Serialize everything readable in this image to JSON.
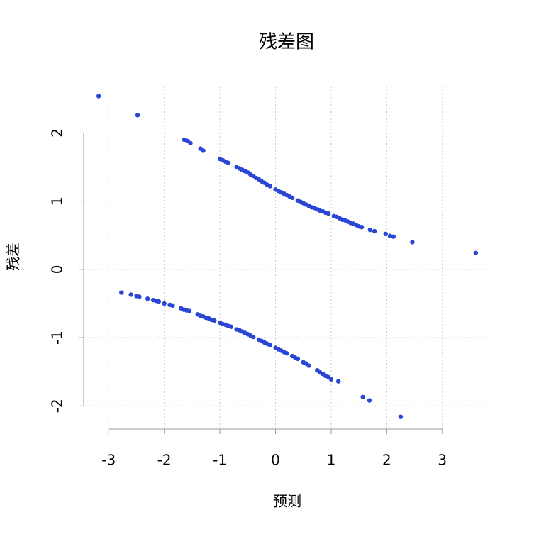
{
  "chart_data": {
    "type": "scatter",
    "title": "残差图",
    "x_label": "预测",
    "y_label": "残差",
    "color": "#2a46d6",
    "grid": true,
    "xlim": [
      -3.45,
      3.87
    ],
    "ylim": [
      -2.34,
      2.68
    ],
    "xticks": [
      -3,
      -2,
      -1,
      0,
      1,
      2,
      3
    ],
    "yticks": [
      -2,
      -1,
      0,
      1,
      2
    ],
    "x": [
      -3.18,
      -2.48,
      -1.64,
      -1.58,
      -1.53,
      -1.35,
      -1.3,
      -1.0,
      -0.95,
      -0.9,
      -0.85,
      -0.7,
      -0.65,
      -0.6,
      -0.55,
      -0.5,
      -0.45,
      -0.4,
      -0.35,
      -0.3,
      -0.25,
      -0.2,
      -0.15,
      -0.1,
      0,
      0.05,
      0.1,
      0.15,
      0.2,
      0.25,
      0.3,
      0.4,
      0.45,
      0.5,
      0.55,
      0.6,
      0.65,
      0.7,
      0.75,
      0.8,
      0.85,
      0.9,
      0.95,
      1.05,
      1.1,
      1.15,
      1.2,
      1.25,
      1.3,
      1.35,
      1.4,
      1.45,
      1.5,
      1.55,
      1.7,
      1.78,
      1.98,
      2.06,
      2.12,
      2.46,
      3.6,
      -2.77,
      -2.6,
      -2.5,
      -2.45,
      -2.3,
      -2.2,
      -2.15,
      -2.1,
      -2.0,
      -1.9,
      -1.85,
      -1.7,
      -1.65,
      -1.6,
      -1.55,
      -1.4,
      -1.35,
      -1.3,
      -1.25,
      -1.2,
      -1.15,
      -1.1,
      -1.0,
      -0.95,
      -0.9,
      -0.85,
      -0.8,
      -0.7,
      -0.65,
      -0.6,
      -0.55,
      -0.5,
      -0.45,
      -0.4,
      -0.3,
      -0.25,
      -0.2,
      -0.15,
      -0.1,
      0,
      0.05,
      0.1,
      0.15,
      0.2,
      0.3,
      0.35,
      0.4,
      0.5,
      0.55,
      0.6,
      0.75,
      0.8,
      0.85,
      0.9,
      0.95,
      1.0,
      1.13,
      1.57,
      1.69,
      2.25
    ],
    "values": [
      2.54,
      2.26,
      1.9,
      1.88,
      1.85,
      1.77,
      1.74,
      1.62,
      1.6,
      1.58,
      1.56,
      1.5,
      1.48,
      1.46,
      1.44,
      1.42,
      1.39,
      1.37,
      1.34,
      1.32,
      1.29,
      1.27,
      1.24,
      1.22,
      1.17,
      1.15,
      1.13,
      1.11,
      1.09,
      1.07,
      1.05,
      1.01,
      0.99,
      0.97,
      0.95,
      0.93,
      0.91,
      0.9,
      0.88,
      0.86,
      0.85,
      0.83,
      0.82,
      0.78,
      0.77,
      0.75,
      0.73,
      0.72,
      0.7,
      0.68,
      0.67,
      0.65,
      0.63,
      0.62,
      0.58,
      0.56,
      0.52,
      0.49,
      0.48,
      0.4,
      0.24,
      -0.34,
      -0.37,
      -0.39,
      -0.4,
      -0.43,
      -0.45,
      -0.46,
      -0.47,
      -0.5,
      -0.52,
      -0.53,
      -0.57,
      -0.59,
      -0.6,
      -0.61,
      -0.66,
      -0.68,
      -0.69,
      -0.71,
      -0.72,
      -0.74,
      -0.75,
      -0.78,
      -0.8,
      -0.81,
      -0.83,
      -0.84,
      -0.88,
      -0.89,
      -0.91,
      -0.93,
      -0.95,
      -0.97,
      -0.99,
      -1.03,
      -1.05,
      -1.07,
      -1.09,
      -1.11,
      -1.15,
      -1.17,
      -1.19,
      -1.21,
      -1.23,
      -1.27,
      -1.29,
      -1.31,
      -1.36,
      -1.38,
      -1.41,
      -1.48,
      -1.51,
      -1.53,
      -1.56,
      -1.58,
      -1.61,
      -1.64,
      -1.87,
      -1.92,
      -2.16
    ]
  }
}
